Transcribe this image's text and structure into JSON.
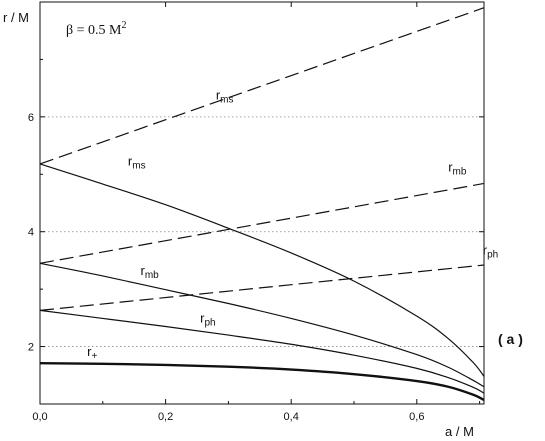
{
  "chart_data": {
    "type": "line",
    "xlabel": "a / M",
    "ylabel": "r / M",
    "annotation": "β = 0.5 M",
    "annotation_sup": "2",
    "panel_label": "( a )",
    "xlim": [
      0.0,
      0.707
    ],
    "ylim": [
      1.0,
      8.0
    ],
    "x_ticks": [
      0.0,
      0.2,
      0.4,
      0.6
    ],
    "x_tick_labels": [
      "0,0",
      "0,2",
      "0,4",
      "0,6"
    ],
    "y_ticks": [
      2,
      4,
      6
    ],
    "y_tick_labels": [
      "2",
      "4",
      "6"
    ],
    "grid": "horizontal dotted",
    "series": [
      {
        "id": "rms-solid",
        "label_main": "r",
        "label_sub": "ms",
        "style": "solid",
        "width": 1.2,
        "x": [
          0.0,
          0.1,
          0.2,
          0.3,
          0.4,
          0.5,
          0.6,
          0.65,
          0.69,
          0.707
        ],
        "y": [
          5.18,
          4.83,
          4.47,
          4.06,
          3.63,
          3.14,
          2.53,
          2.14,
          1.72,
          1.48
        ]
      },
      {
        "id": "rmb-solid",
        "label_main": "r",
        "label_sub": "mb",
        "style": "solid",
        "width": 1.2,
        "x": [
          0.0,
          0.1,
          0.2,
          0.3,
          0.4,
          0.5,
          0.6,
          0.65,
          0.69,
          0.707
        ],
        "y": [
          3.45,
          3.23,
          2.99,
          2.75,
          2.49,
          2.2,
          1.86,
          1.64,
          1.41,
          1.3
        ]
      },
      {
        "id": "rph-solid",
        "label_main": "r",
        "label_sub": "ph",
        "style": "solid",
        "width": 1.2,
        "x": [
          0.0,
          0.1,
          0.2,
          0.3,
          0.4,
          0.5,
          0.6,
          0.65,
          0.69,
          0.707
        ],
        "y": [
          2.63,
          2.49,
          2.35,
          2.2,
          2.04,
          1.85,
          1.62,
          1.46,
          1.29,
          1.19
        ]
      },
      {
        "id": "rplus",
        "label_main": "r",
        "label_sub": "+",
        "style": "solid",
        "width": 2.4,
        "x": [
          0.0,
          0.1,
          0.2,
          0.3,
          0.4,
          0.5,
          0.6,
          0.65,
          0.69,
          0.707
        ],
        "y": [
          1.71,
          1.7,
          1.68,
          1.65,
          1.6,
          1.52,
          1.4,
          1.3,
          1.16,
          1.07
        ]
      },
      {
        "id": "rms-dashed",
        "label_main": "r",
        "label_sub": "ms",
        "style": "dashed",
        "width": 1.2,
        "x": [
          0.0,
          0.707
        ],
        "y": [
          5.18,
          7.9
        ]
      },
      {
        "id": "rmb-dashed",
        "label_main": "r",
        "label_sub": "mb",
        "style": "dashed",
        "width": 1.2,
        "x": [
          0.0,
          0.707
        ],
        "y": [
          3.45,
          4.84
        ]
      },
      {
        "id": "rph-dashed",
        "label_main": "r",
        "label_sub": "ph",
        "style": "dashed",
        "width": 1.2,
        "x": [
          0.0,
          0.707
        ],
        "y": [
          2.63,
          3.42
        ]
      }
    ],
    "curve_labels": [
      {
        "series": "rms-dashed",
        "main": "r",
        "sub": "ms",
        "x": 0.28,
        "y": 6.3
      },
      {
        "series": "rms-solid",
        "main": "r",
        "sub": "ms",
        "x": 0.14,
        "y": 5.15
      },
      {
        "series": "rmb-dashed",
        "main": "r",
        "sub": "mb",
        "x": 0.65,
        "y": 5.05
      },
      {
        "series": "rmb-solid",
        "main": "r",
        "sub": "mb",
        "x": 0.16,
        "y": 3.25
      },
      {
        "series": "rph-dashed",
        "main": "r",
        "sub": "ph",
        "x": 0.705,
        "y": 3.6
      },
      {
        "series": "rph-solid",
        "main": "r",
        "sub": "ph",
        "x": 0.255,
        "y": 2.42
      },
      {
        "series": "rplus",
        "main": "r",
        "sub": "+",
        "x": 0.075,
        "y": 1.84
      }
    ]
  }
}
